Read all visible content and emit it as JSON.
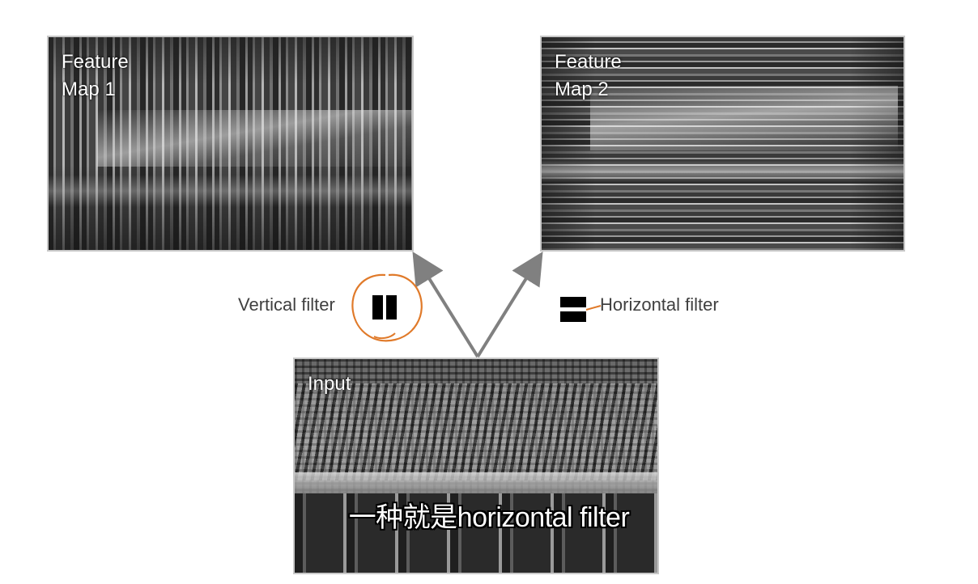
{
  "panels": {
    "feature_map_1": {
      "label": "Feature\nMap 1"
    },
    "feature_map_2": {
      "label": "Feature\nMap 2"
    },
    "input": {
      "label": "Input"
    }
  },
  "filters": {
    "vertical": {
      "label": "Vertical filter",
      "icon": "vertical-bars-icon"
    },
    "horizontal": {
      "label": "Horizontal filter",
      "icon": "horizontal-bars-icon"
    }
  },
  "annotation": {
    "circle_color": "#e07a2a"
  },
  "arrows": {
    "color": "#808080"
  },
  "subtitle": {
    "text": "一种就是horizontal filter"
  }
}
